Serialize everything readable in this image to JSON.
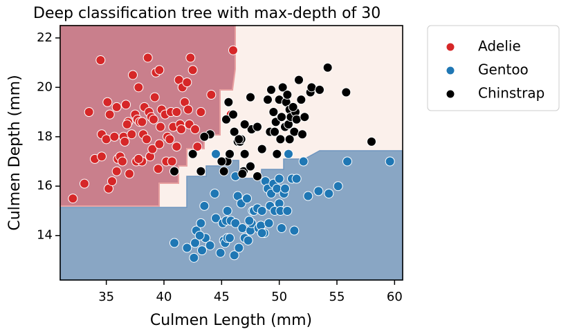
{
  "chart_data": {
    "type": "scatter",
    "title": "Deep classification tree with max-depth of 30",
    "x_label": "Culmen Length (mm)",
    "y_label": "Culmen Depth (mm)",
    "xlim": [
      31,
      60.7
    ],
    "ylim": [
      12.2,
      22.5
    ],
    "xticks": [
      35,
      40,
      45,
      50,
      55,
      60
    ],
    "yticks": [
      14,
      16,
      18,
      20,
      22
    ],
    "legend": "upper right outside",
    "series": [
      {
        "name": "Adelie",
        "color": "#d62728",
        "x": [
          32.1,
          33.1,
          33.5,
          34.0,
          34.5,
          34.6,
          34.6,
          35.0,
          35.1,
          35.2,
          35.3,
          35.5,
          35.7,
          35.9,
          36.0,
          36.2,
          36.4,
          36.5,
          36.6,
          36.7,
          36.9,
          37.0,
          37.2,
          37.3,
          37.5,
          37.6,
          37.7,
          37.8,
          37.9,
          38.1,
          38.2,
          38.3,
          38.5,
          38.6,
          38.7,
          38.8,
          38.9,
          39.0,
          39.1,
          39.2,
          39.3,
          39.5,
          39.6,
          39.7,
          39.8,
          40.1,
          40.2,
          40.3,
          40.5,
          40.6,
          40.8,
          40.9,
          41.1,
          41.3,
          41.4,
          41.5,
          41.6,
          41.8,
          42.0,
          42.2,
          42.3,
          42.5,
          42.7,
          42.9,
          43.2,
          44.1,
          45.8,
          46.0,
          39.6,
          36.8,
          37.8,
          38.1,
          40.7,
          41.1,
          42.1,
          35.9
        ],
        "values": [
          15.5,
          16.1,
          19.0,
          17.1,
          21.1,
          17.2,
          18.1,
          17.9,
          19.4,
          15.9,
          18.9,
          16.2,
          18.0,
          19.2,
          17.1,
          17.2,
          17.0,
          18.0,
          17.8,
          19.3,
          18.6,
          16.5,
          18.1,
          20.5,
          18.9,
          17.0,
          18.7,
          20.0,
          18.6,
          17.0,
          18.1,
          19.2,
          17.9,
          21.2,
          19.0,
          17.2,
          18.8,
          17.5,
          18.7,
          19.6,
          20.6,
          16.7,
          17.7,
          18.4,
          19.1,
          18.9,
          17.0,
          18.0,
          17.9,
          19.0,
          18.4,
          16.6,
          19.0,
          20.3,
          18.5,
          18.3,
          20.0,
          19.4,
          20.2,
          18.5,
          21.2,
          20.7,
          18.3,
          17.6,
          19.0,
          19.7,
          18.9,
          21.5,
          20.7,
          18.5,
          17.1,
          18.6,
          17.0,
          17.6,
          19.1,
          16.6
        ]
      },
      {
        "name": "Gentoo",
        "color": "#1f77b4",
        "x": [
          40.9,
          42.0,
          42.7,
          42.8,
          43.2,
          43.3,
          43.5,
          43.6,
          44.0,
          44.4,
          44.5,
          44.9,
          45.1,
          45.2,
          45.3,
          45.4,
          45.5,
          45.7,
          45.8,
          46.1,
          46.2,
          46.4,
          46.5,
          46.7,
          46.8,
          47.0,
          47.2,
          47.3,
          47.5,
          47.6,
          47.7,
          47.8,
          48.1,
          48.2,
          48.4,
          48.5,
          48.7,
          48.8,
          49.0,
          49.1,
          49.2,
          49.3,
          49.5,
          49.6,
          49.8,
          50.0,
          50.1,
          50.2,
          50.4,
          50.5,
          50.7,
          50.8,
          51.1,
          51.3,
          51.5,
          52.1,
          52.5,
          53.4,
          54.3,
          55.1,
          55.9,
          59.6,
          44.5,
          46.2,
          47.4,
          45.5,
          42.6,
          43.1,
          48.5,
          50.0
        ],
        "values": [
          13.7,
          13.5,
          13.7,
          14.2,
          14.5,
          13.4,
          15.2,
          13.9,
          13.6,
          15.7,
          14.7,
          13.3,
          14.5,
          13.8,
          13.7,
          14.6,
          13.9,
          13.9,
          14.6,
          13.2,
          14.5,
          15.6,
          13.5,
          15.3,
          14.3,
          13.9,
          15.5,
          13.8,
          14.2,
          14.5,
          15.0,
          15.0,
          15.1,
          14.3,
          14.4,
          15.0,
          14.1,
          16.2,
          15.9,
          14.5,
          15.2,
          15.7,
          16.1,
          15.0,
          15.9,
          15.3,
          15.0,
          14.3,
          15.7,
          15.9,
          15.0,
          17.3,
          16.3,
          14.2,
          16.3,
          17.0,
          15.6,
          15.8,
          15.7,
          16.0,
          17.0,
          17.0,
          17.3,
          16.4,
          14.6,
          15.0,
          13.1,
          14.0,
          14.1,
          16.3
        ]
      },
      {
        "name": "Chinstrap",
        "color": "#000000",
        "x": [
          40.9,
          42.5,
          43.2,
          45.2,
          45.4,
          45.5,
          45.6,
          45.7,
          46.0,
          46.1,
          46.4,
          46.6,
          46.7,
          46.9,
          47.0,
          47.5,
          47.6,
          48.1,
          48.5,
          49.0,
          49.2,
          49.3,
          49.5,
          49.6,
          49.7,
          50.0,
          50.1,
          50.2,
          50.3,
          50.5,
          50.6,
          50.7,
          50.8,
          50.9,
          51.0,
          51.3,
          51.4,
          51.5,
          51.7,
          51.9,
          52.0,
          52.2,
          52.7,
          52.8,
          53.5,
          54.2,
          55.8,
          58.0,
          47.0,
          47.5,
          46.5,
          49.8,
          48.1,
          51.2,
          50.9,
          45.0,
          46.8,
          44.0,
          43.5
        ],
        "values": [
          16.6,
          17.3,
          16.6,
          16.6,
          18.7,
          17.0,
          19.4,
          17.3,
          18.9,
          18.2,
          17.8,
          17.8,
          17.9,
          16.6,
          17.3,
          16.8,
          18.3,
          16.4,
          17.5,
          19.5,
          18.2,
          19.9,
          19.0,
          18.2,
          18.6,
          19.5,
          17.9,
          18.8,
          20.0,
          18.4,
          19.4,
          19.7,
          18.5,
          19.1,
          18.8,
          18.2,
          19.0,
          18.7,
          20.3,
          19.5,
          18.1,
          18.8,
          19.8,
          20.0,
          19.9,
          20.8,
          19.8,
          17.8,
          18.5,
          19.6,
          17.9,
          17.3,
          18.4,
          19.2,
          17.9,
          17.0,
          16.5,
          18.1,
          18.0
        ]
      }
    ]
  }
}
